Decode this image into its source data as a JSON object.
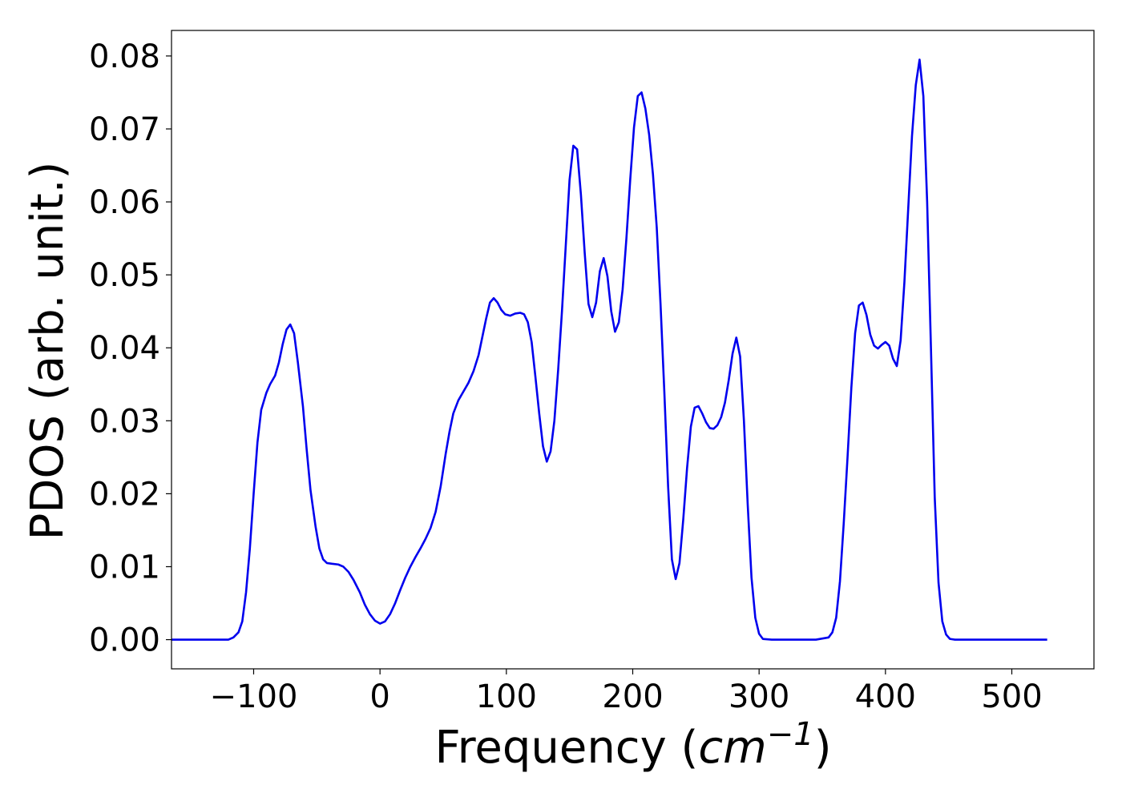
{
  "chart_data": {
    "type": "line",
    "xlabel_text": "Frequency (",
    "xlabel_unit": "cm",
    "xlabel_unit_exponent": "−1",
    "xlabel_close": ")",
    "ylabel": "PDOS (arb. unit.)",
    "xlim": [
      -165,
      565
    ],
    "ylim": [
      -0.004,
      0.0835
    ],
    "xticks": [
      {
        "value": -100,
        "label": "−100"
      },
      {
        "value": 0,
        "label": "0"
      },
      {
        "value": 100,
        "label": "100"
      },
      {
        "value": 200,
        "label": "200"
      },
      {
        "value": 300,
        "label": "300"
      },
      {
        "value": 400,
        "label": "400"
      },
      {
        "value": 500,
        "label": "500"
      }
    ],
    "yticks": [
      {
        "value": 0.0,
        "label": "0.00"
      },
      {
        "value": 0.01,
        "label": "0.01"
      },
      {
        "value": 0.02,
        "label": "0.02"
      },
      {
        "value": 0.03,
        "label": "0.03"
      },
      {
        "value": 0.04,
        "label": "0.04"
      },
      {
        "value": 0.05,
        "label": "0.05"
      },
      {
        "value": 0.06,
        "label": "0.06"
      },
      {
        "value": 0.07,
        "label": "0.07"
      },
      {
        "value": 0.08,
        "label": "0.08"
      }
    ],
    "grid": false,
    "series": [
      {
        "color": "#0000ee",
        "points": [
          [
            -165,
            0.0
          ],
          [
            -150,
            0.0
          ],
          [
            -135,
            0.0
          ],
          [
            -120,
            0.0
          ],
          [
            -116,
            0.0003
          ],
          [
            -112,
            0.001
          ],
          [
            -109,
            0.0025
          ],
          [
            -106,
            0.0065
          ],
          [
            -103,
            0.0125
          ],
          [
            -100,
            0.02
          ],
          [
            -97,
            0.027
          ],
          [
            -94,
            0.0315
          ],
          [
            -90,
            0.0338
          ],
          [
            -87,
            0.035
          ],
          [
            -83,
            0.0362
          ],
          [
            -80,
            0.038
          ],
          [
            -77,
            0.0405
          ],
          [
            -74,
            0.0425
          ],
          [
            -71,
            0.0432
          ],
          [
            -68,
            0.042
          ],
          [
            -65,
            0.038
          ],
          [
            -61,
            0.032
          ],
          [
            -58,
            0.026
          ],
          [
            -55,
            0.0205
          ],
          [
            -51,
            0.0155
          ],
          [
            -48,
            0.0125
          ],
          [
            -45,
            0.011
          ],
          [
            -42,
            0.0105
          ],
          [
            -38,
            0.0104
          ],
          [
            -33,
            0.0103
          ],
          [
            -29,
            0.01
          ],
          [
            -25,
            0.0093
          ],
          [
            -21,
            0.0082
          ],
          [
            -16,
            0.0065
          ],
          [
            -12,
            0.0048
          ],
          [
            -8,
            0.0035
          ],
          [
            -4,
            0.0026
          ],
          [
            0,
            0.0022
          ],
          [
            4,
            0.0025
          ],
          [
            8,
            0.0035
          ],
          [
            12,
            0.005
          ],
          [
            16,
            0.0068
          ],
          [
            20,
            0.0085
          ],
          [
            24,
            0.01
          ],
          [
            28,
            0.0113
          ],
          [
            32,
            0.0125
          ],
          [
            36,
            0.0138
          ],
          [
            40,
            0.0153
          ],
          [
            44,
            0.0175
          ],
          [
            48,
            0.021
          ],
          [
            52,
            0.0255
          ],
          [
            55,
            0.0285
          ],
          [
            58,
            0.031
          ],
          [
            62,
            0.0328
          ],
          [
            66,
            0.034
          ],
          [
            70,
            0.0352
          ],
          [
            74,
            0.0368
          ],
          [
            78,
            0.039
          ],
          [
            81,
            0.0415
          ],
          [
            84,
            0.044
          ],
          [
            87,
            0.0462
          ],
          [
            90,
            0.0468
          ],
          [
            93,
            0.0462
          ],
          [
            96,
            0.0452
          ],
          [
            99,
            0.0446
          ],
          [
            103,
            0.0444
          ],
          [
            107,
            0.0447
          ],
          [
            111,
            0.0448
          ],
          [
            114,
            0.0446
          ],
          [
            117,
            0.0435
          ],
          [
            120,
            0.0408
          ],
          [
            123,
            0.036
          ],
          [
            126,
            0.031
          ],
          [
            129,
            0.0265
          ],
          [
            132,
            0.0244
          ],
          [
            135,
            0.0258
          ],
          [
            138,
            0.03
          ],
          [
            141,
            0.037
          ],
          [
            144,
            0.045
          ],
          [
            147,
            0.054
          ],
          [
            150,
            0.063
          ],
          [
            153,
            0.0677
          ],
          [
            156,
            0.0672
          ],
          [
            159,
            0.061
          ],
          [
            162,
            0.053
          ],
          [
            165,
            0.046
          ],
          [
            168,
            0.0442
          ],
          [
            171,
            0.0462
          ],
          [
            174,
            0.0505
          ],
          [
            177,
            0.0523
          ],
          [
            180,
            0.0498
          ],
          [
            183,
            0.045
          ],
          [
            186,
            0.0422
          ],
          [
            189,
            0.0435
          ],
          [
            192,
            0.048
          ],
          [
            195,
            0.055
          ],
          [
            198,
            0.063
          ],
          [
            201,
            0.0702
          ],
          [
            204,
            0.0745
          ],
          [
            207,
            0.075
          ],
          [
            210,
            0.0728
          ],
          [
            213,
            0.0692
          ],
          [
            216,
            0.0638
          ],
          [
            219,
            0.0565
          ],
          [
            222,
            0.046
          ],
          [
            225,
            0.034
          ],
          [
            228,
            0.021
          ],
          [
            231,
            0.011
          ],
          [
            234,
            0.0083
          ],
          [
            237,
            0.0105
          ],
          [
            240,
            0.0165
          ],
          [
            243,
            0.0235
          ],
          [
            246,
            0.0292
          ],
          [
            249,
            0.0318
          ],
          [
            252,
            0.032
          ],
          [
            255,
            0.031
          ],
          [
            258,
            0.0298
          ],
          [
            261,
            0.029
          ],
          [
            264,
            0.0289
          ],
          [
            267,
            0.0294
          ],
          [
            270,
            0.0305
          ],
          [
            273,
            0.0325
          ],
          [
            276,
            0.0356
          ],
          [
            279,
            0.0392
          ],
          [
            282,
            0.0414
          ],
          [
            285,
            0.0388
          ],
          [
            288,
            0.03
          ],
          [
            291,
            0.0185
          ],
          [
            294,
            0.0085
          ],
          [
            297,
            0.003
          ],
          [
            300,
            0.0008
          ],
          [
            303,
            0.0001
          ],
          [
            310,
            0.0
          ],
          [
            330,
            0.0
          ],
          [
            345,
            0.0
          ],
          [
            355,
            0.0003
          ],
          [
            358,
            0.001
          ],
          [
            361,
            0.003
          ],
          [
            364,
            0.008
          ],
          [
            367,
            0.016
          ],
          [
            370,
            0.025
          ],
          [
            373,
            0.0345
          ],
          [
            376,
            0.042
          ],
          [
            379,
            0.0458
          ],
          [
            382,
            0.0462
          ],
          [
            385,
            0.0445
          ],
          [
            388,
            0.0418
          ],
          [
            391,
            0.0403
          ],
          [
            394,
            0.0399
          ],
          [
            397,
            0.0404
          ],
          [
            400,
            0.0408
          ],
          [
            403,
            0.0403
          ],
          [
            406,
            0.0385
          ],
          [
            409,
            0.0375
          ],
          [
            412,
            0.041
          ],
          [
            415,
            0.049
          ],
          [
            418,
            0.059
          ],
          [
            421,
            0.069
          ],
          [
            424,
            0.076
          ],
          [
            427,
            0.0795
          ],
          [
            430,
            0.0745
          ],
          [
            433,
            0.06
          ],
          [
            436,
            0.04
          ],
          [
            439,
            0.0195
          ],
          [
            442,
            0.0078
          ],
          [
            445,
            0.0025
          ],
          [
            448,
            0.0007
          ],
          [
            451,
            0.0001
          ],
          [
            455,
            0.0
          ],
          [
            470,
            0.0
          ],
          [
            490,
            0.0
          ],
          [
            510,
            0.0
          ],
          [
            528,
            0.0
          ]
        ]
      }
    ]
  }
}
